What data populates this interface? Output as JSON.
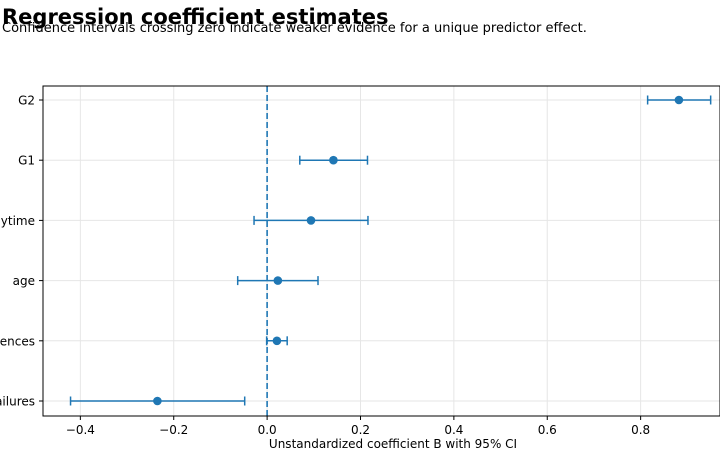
{
  "chart_data": {
    "type": "scatter",
    "title": "Regression coefficient estimates",
    "subtitle": "Confidence intervals crossing zero indicate weaker evidence for a unique predictor effect.",
    "xlabel": "Unstandardized coefficient B with 95% CI",
    "ylabel": "",
    "xlim": [
      -0.48,
      0.97
    ],
    "x_ticks": [
      -0.4,
      -0.2,
      0.0,
      0.2,
      0.4,
      0.6,
      0.8
    ],
    "x_tick_labels": [
      "−0.4",
      "−0.2",
      "0.0",
      "0.2",
      "0.4",
      "0.6",
      "0.8"
    ],
    "grid": true,
    "reference_line": {
      "x": 0,
      "style": "dashed"
    },
    "color": "#1f77b4",
    "predictors": [
      "G2",
      "G1",
      "studytime",
      "age",
      "absences",
      "failures"
    ],
    "estimates": [
      0.882,
      0.142,
      0.094,
      0.023,
      0.021,
      -0.235
    ],
    "ci_low": [
      0.815,
      0.07,
      -0.028,
      -0.063,
      -0.001,
      -0.421
    ],
    "ci_high": [
      0.95,
      0.215,
      0.216,
      0.109,
      0.043,
      -0.048
    ]
  }
}
